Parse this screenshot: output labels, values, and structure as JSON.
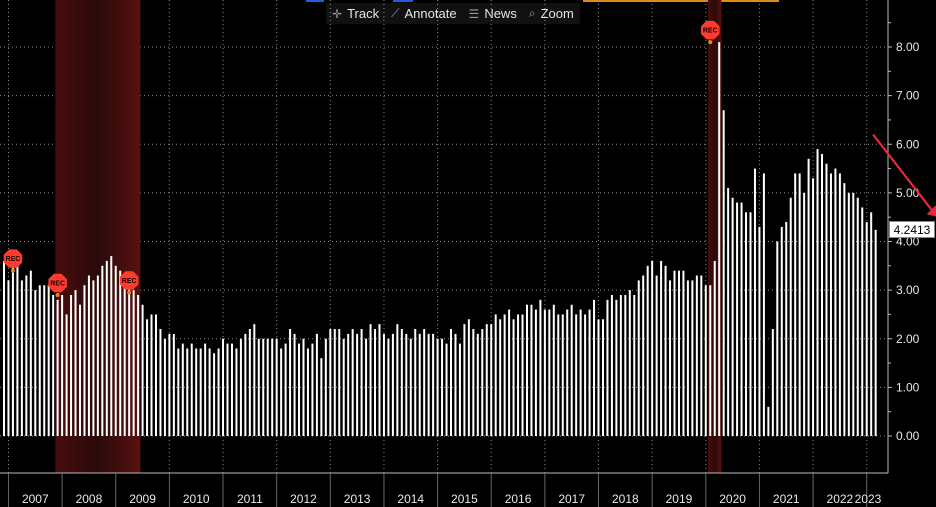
{
  "toolbar": {
    "track": {
      "label": "Track",
      "icon": "crosshair-icon"
    },
    "annotate": {
      "label": "Annotate",
      "icon": "pencil-icon"
    },
    "news": {
      "label": "News",
      "icon": "news-icon"
    },
    "zoom": {
      "label": "Zoom",
      "icon": "search-icon"
    }
  },
  "last_value_label": "4.2413",
  "recession_marker_label": "REC",
  "colors": {
    "background": "#000000",
    "bars": "#ffffff",
    "recession_shading": "#6b1212",
    "recession_marker": "#ff3b30",
    "trend_arrow": "#e8283a",
    "axis": "#bbbbbb"
  },
  "chart_data": {
    "type": "bar",
    "ylim": [
      -0.8,
      8.9
    ],
    "yticks": [
      "0.00",
      "1.00",
      "2.00",
      "3.00",
      "4.00",
      "5.00",
      "6.00",
      "7.00",
      "8.00"
    ],
    "xticks": [
      "2007",
      "2008",
      "2009",
      "2010",
      "2011",
      "2012",
      "2013",
      "2014",
      "2015",
      "2016",
      "2017",
      "2018",
      "2019",
      "2020",
      "2021",
      "2022",
      "2023"
    ],
    "grid": true,
    "recessions": [
      {
        "start": "2007-12",
        "end": "2009-06"
      },
      {
        "start": "2020-02",
        "end": "2020-04"
      }
    ],
    "recession_markers": [
      {
        "date": "2007-02",
        "value": 3.4
      },
      {
        "date": "2007-12",
        "value": 2.9
      },
      {
        "date": "2009-04",
        "value": 2.95
      },
      {
        "date": "2020-02",
        "value": 8.1
      }
    ],
    "last_value": 4.2413,
    "trend_arrow": {
      "from": {
        "date": "2022-01",
        "value": 6.2
      },
      "to": {
        "date": "2023-01",
        "value": 4.5
      }
    },
    "x_start": "2006-12",
    "values": [
      3.6,
      3.2,
      3.5,
      3.6,
      3.2,
      3.3,
      3.4,
      3.0,
      3.1,
      3.1,
      3.1,
      2.9,
      2.8,
      2.9,
      2.5,
      2.9,
      3.0,
      2.7,
      3.1,
      3.3,
      3.2,
      3.3,
      3.5,
      3.6,
      3.7,
      3.5,
      3.4,
      3.3,
      3.2,
      3.0,
      2.9,
      2.7,
      2.4,
      2.5,
      2.5,
      2.2,
      2.0,
      2.1,
      2.1,
      1.8,
      1.9,
      1.8,
      1.9,
      1.8,
      1.8,
      1.9,
      1.8,
      1.7,
      1.8,
      2.0,
      1.9,
      1.9,
      1.8,
      2.0,
      2.1,
      2.2,
      2.3,
      2.0,
      2.0,
      2.0,
      2.0,
      2.0,
      1.8,
      1.9,
      2.2,
      2.1,
      1.9,
      2.0,
      1.8,
      1.9,
      2.1,
      1.6,
      2.0,
      2.2,
      2.2,
      2.2,
      2.0,
      2.1,
      2.2,
      2.1,
      2.2,
      2.0,
      2.3,
      2.2,
      2.3,
      2.1,
      2.0,
      2.1,
      2.3,
      2.2,
      2.1,
      2.0,
      2.2,
      2.1,
      2.2,
      2.1,
      2.1,
      2.0,
      2.0,
      1.9,
      2.2,
      2.1,
      1.9,
      2.3,
      2.4,
      2.2,
      2.1,
      2.2,
      2.3,
      2.3,
      2.5,
      2.4,
      2.5,
      2.6,
      2.4,
      2.5,
      2.5,
      2.7,
      2.7,
      2.6,
      2.8,
      2.6,
      2.6,
      2.7,
      2.5,
      2.5,
      2.6,
      2.7,
      2.5,
      2.6,
      2.5,
      2.6,
      2.8,
      2.4,
      2.4,
      2.8,
      2.9,
      2.8,
      2.9,
      2.9,
      3.0,
      2.9,
      3.2,
      3.3,
      3.5,
      3.6,
      3.3,
      3.6,
      3.5,
      3.2,
      3.4,
      3.4,
      3.4,
      3.2,
      3.2,
      3.3,
      3.3,
      3.1,
      3.1,
      3.6,
      8.1,
      6.7,
      5.1,
      4.9,
      4.8,
      4.8,
      4.6,
      4.6,
      5.5,
      4.3,
      5.4,
      0.6,
      2.2,
      4.0,
      4.3,
      4.4,
      4.9,
      5.4,
      5.4,
      5.0,
      5.7,
      5.3,
      5.9,
      5.8,
      5.6,
      5.4,
      5.5,
      5.4,
      5.2,
      5.0,
      5.0,
      4.9,
      4.7,
      4.4,
      4.6,
      4.24
    ]
  }
}
